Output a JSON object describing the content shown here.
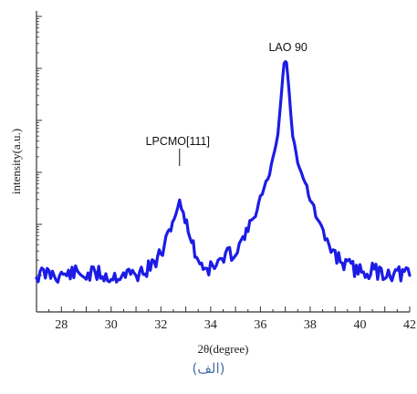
{
  "chart_data": {
    "type": "line",
    "xlabel": "2θ(degree)",
    "ylabel": "intensity(a.u.)",
    "xlim": [
      27,
      42
    ],
    "ylim": [
      0,
      1
    ],
    "x_ticks": [
      28,
      30,
      32,
      34,
      36,
      38,
      40,
      42
    ],
    "y_scale": "log",
    "y_tick_labels_shown": false,
    "grid": false,
    "legend": "none",
    "color": "#1c1ce6",
    "series": [
      {
        "x": [
          27.0,
          27.5,
          28.0,
          28.5,
          29.0,
          29.5,
          30.0,
          30.5,
          31.0,
          31.5,
          31.8,
          32.0,
          32.2,
          32.4,
          32.6,
          32.75,
          32.9,
          33.1,
          33.3,
          33.5,
          33.7,
          34.0,
          34.3,
          34.6,
          35.0,
          35.3,
          35.5,
          35.8,
          36.0,
          36.3,
          36.5,
          36.7,
          36.85,
          36.95,
          37.05,
          37.15,
          37.3,
          37.5,
          37.8,
          38.0,
          38.3,
          38.6,
          39.0,
          39.5,
          40.0,
          40.5,
          41.0,
          41.5,
          42.0
        ],
        "y": [
          0.06,
          0.07,
          0.06,
          0.07,
          0.06,
          0.07,
          0.05,
          0.07,
          0.06,
          0.09,
          0.12,
          0.15,
          0.21,
          0.27,
          0.33,
          0.37,
          0.33,
          0.26,
          0.18,
          0.13,
          0.1,
          0.09,
          0.11,
          0.14,
          0.17,
          0.22,
          0.26,
          0.33,
          0.39,
          0.47,
          0.56,
          0.67,
          0.85,
          0.98,
          0.98,
          0.85,
          0.66,
          0.55,
          0.46,
          0.39,
          0.3,
          0.22,
          0.15,
          0.1,
          0.08,
          0.08,
          0.07,
          0.07,
          0.06
        ]
      }
    ],
    "annotations": [
      {
        "text": "LPCMO[111]",
        "x": 32.75
      },
      {
        "text": "LAO 90",
        "x": 37.0
      }
    ]
  },
  "caption": "(الف)"
}
